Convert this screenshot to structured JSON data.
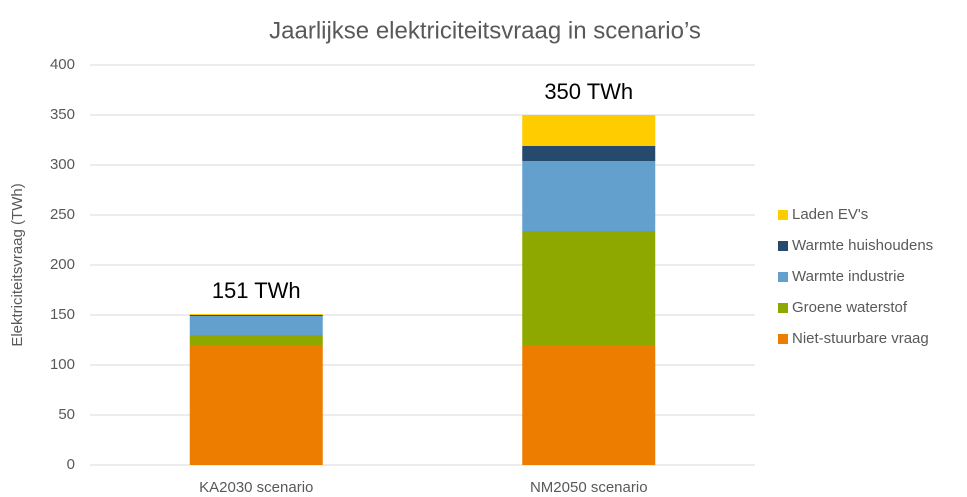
{
  "chart_data": {
    "type": "stacked_bar",
    "title": "Jaarlijkse elektriciteitsvraag in scenario’s",
    "y_label": "Elektriciteitsvraag (TWh)",
    "categories": [
      "KA2030 scenario",
      "NM2050 scenario"
    ],
    "series": [
      {
        "name": "Niet-stuurbare vraag",
        "color": "#ed7d00",
        "values": [
          120,
          120
        ]
      },
      {
        "name": "Groene waterstof",
        "color": "#8fa800",
        "values": [
          10,
          114
        ]
      },
      {
        "name": "Warmte industrie",
        "color": "#63a0ce",
        "values": [
          19,
          70
        ]
      },
      {
        "name": "Warmte huishoudens",
        "color": "#254a6e",
        "values": [
          1,
          15
        ]
      },
      {
        "name": "Laden EV's",
        "color": "#ffcc00",
        "values": [
          1,
          31
        ]
      }
    ],
    "totals": [
      151,
      350
    ],
    "total_labels": [
      "151 TWh",
      "350 TWh"
    ],
    "ylim": [
      0,
      400
    ],
    "yticks": [
      0,
      50,
      100,
      150,
      200,
      250,
      300,
      350,
      400
    ],
    "grid": true,
    "legend": "right"
  }
}
